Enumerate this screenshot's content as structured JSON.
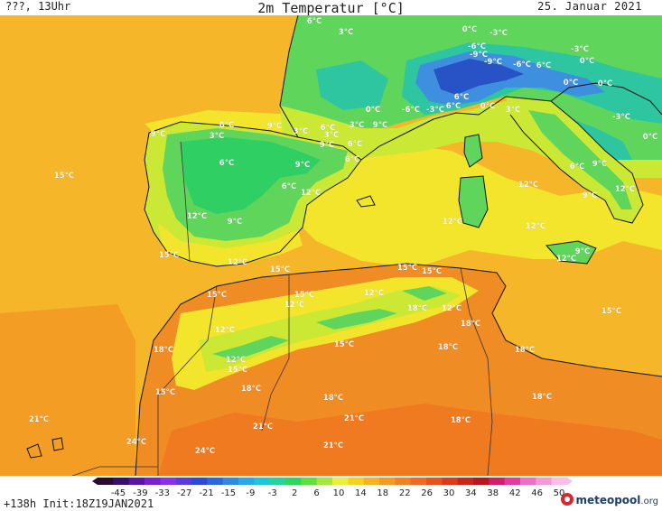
{
  "header": {
    "left": "???, 13Uhr",
    "title": "2m Temperatur [°C]",
    "date": "25. Januar 2021"
  },
  "footer": {
    "run": "+138h Init:18Z19JAN2021",
    "brand_main": "meteopool",
    "brand_tld": ".org"
  },
  "legend": {
    "ticks": [
      "-45",
      "-39",
      "-33",
      "-27",
      "-21",
      "-15",
      "-9",
      "-3",
      "2",
      "6",
      "10",
      "14",
      "18",
      "22",
      "26",
      "30",
      "34",
      "38",
      "42",
      "46",
      "50"
    ],
    "colors": [
      "#2b0a2b",
      "#3a0c6b",
      "#5a14a6",
      "#7a1fd1",
      "#8a30e8",
      "#5a3ad8",
      "#2f48d6",
      "#2a68dc",
      "#2f8ae0",
      "#28a8e8",
      "#1cc8d8",
      "#26d39a",
      "#2cd85a",
      "#5ee03a",
      "#a6e83a",
      "#e8f03a",
      "#f5d21e",
      "#f4b422",
      "#f29a24",
      "#f08226",
      "#ee6a20",
      "#e8521c",
      "#dd3a1a",
      "#cc231c",
      "#b8161e",
      "#d41d6a",
      "#e23ca0",
      "#ee6fc6",
      "#f49ad9",
      "#f8bee8"
    ]
  },
  "map": {
    "colors": {
      "sea": "#f5b62a",
      "sea_warm": "#f39d24",
      "yellow": "#f2e52c",
      "lime": "#cbe834",
      "green": "#5fd65b",
      "green_dark": "#2fcf63",
      "cyan": "#2dc6a0",
      "blue": "#3f8fe0",
      "navy": "#2753c6",
      "land_warm": "#f08c24",
      "land_hot": "#f07a20",
      "coast": "#111111",
      "border": "#333333"
    },
    "labels": [
      {
        "t": "6°C"
      },
      {
        "t": "3°C"
      },
      {
        "t": "0°C"
      },
      {
        "t": "-3°C"
      },
      {
        "t": "-6°C"
      },
      {
        "t": "-9°C"
      },
      {
        "t": "-9°C"
      },
      {
        "t": "-6°C"
      },
      {
        "t": "6°C"
      },
      {
        "t": "-3°C"
      },
      {
        "t": "0°C"
      },
      {
        "t": "0°C"
      },
      {
        "t": "0°C"
      },
      {
        "t": "-3°C"
      },
      {
        "t": "0°C"
      },
      {
        "t": "0°C"
      },
      {
        "t": "-6°C"
      },
      {
        "t": "-3°C"
      },
      {
        "t": "6°C"
      },
      {
        "t": "6°C"
      },
      {
        "t": "3°C"
      },
      {
        "t": "0°C"
      },
      {
        "t": "9°C"
      },
      {
        "t": "3°C"
      },
      {
        "t": "6°C"
      },
      {
        "t": "3°C"
      },
      {
        "t": "9°C"
      },
      {
        "t": "6°C"
      },
      {
        "t": "3°C"
      },
      {
        "t": "9°C"
      },
      {
        "t": "3°C"
      },
      {
        "t": "6°C"
      },
      {
        "t": "9°C"
      },
      {
        "t": "6°C"
      },
      {
        "t": "6°C"
      },
      {
        "t": "9°C"
      },
      {
        "t": "6°C"
      },
      {
        "t": "12°C"
      },
      {
        "t": "15°C"
      },
      {
        "t": "12°C"
      },
      {
        "t": "9°C"
      },
      {
        "t": "12°C"
      },
      {
        "t": "12°C"
      },
      {
        "t": "12°C"
      },
      {
        "t": "9°C"
      },
      {
        "t": "12°C"
      },
      {
        "t": "6°C"
      },
      {
        "t": "9°C"
      },
      {
        "t": "12°C"
      },
      {
        "t": "15°C"
      },
      {
        "t": "12°C"
      },
      {
        "t": "15°C"
      },
      {
        "t": "15°C"
      },
      {
        "t": "15°C"
      },
      {
        "t": "9°C"
      },
      {
        "t": "12°C"
      },
      {
        "t": "12°C"
      },
      {
        "t": "15°C"
      },
      {
        "t": "18°C"
      },
      {
        "t": "12°C"
      },
      {
        "t": "15°C"
      },
      {
        "t": "15°C"
      },
      {
        "t": "12°C"
      },
      {
        "t": "18°C"
      },
      {
        "t": "15°C"
      },
      {
        "t": "18°C"
      },
      {
        "t": "18°C"
      },
      {
        "t": "12°C"
      },
      {
        "t": "15°C"
      },
      {
        "t": "15°C"
      },
      {
        "t": "18°C"
      },
      {
        "t": "18°C"
      },
      {
        "t": "18°C"
      },
      {
        "t": "18°C"
      },
      {
        "t": "21°C"
      },
      {
        "t": "21°C"
      },
      {
        "t": "21°C"
      },
      {
        "t": "18°C"
      },
      {
        "t": "24°C"
      },
      {
        "t": "24°C"
      },
      {
        "t": "21°C"
      }
    ]
  }
}
